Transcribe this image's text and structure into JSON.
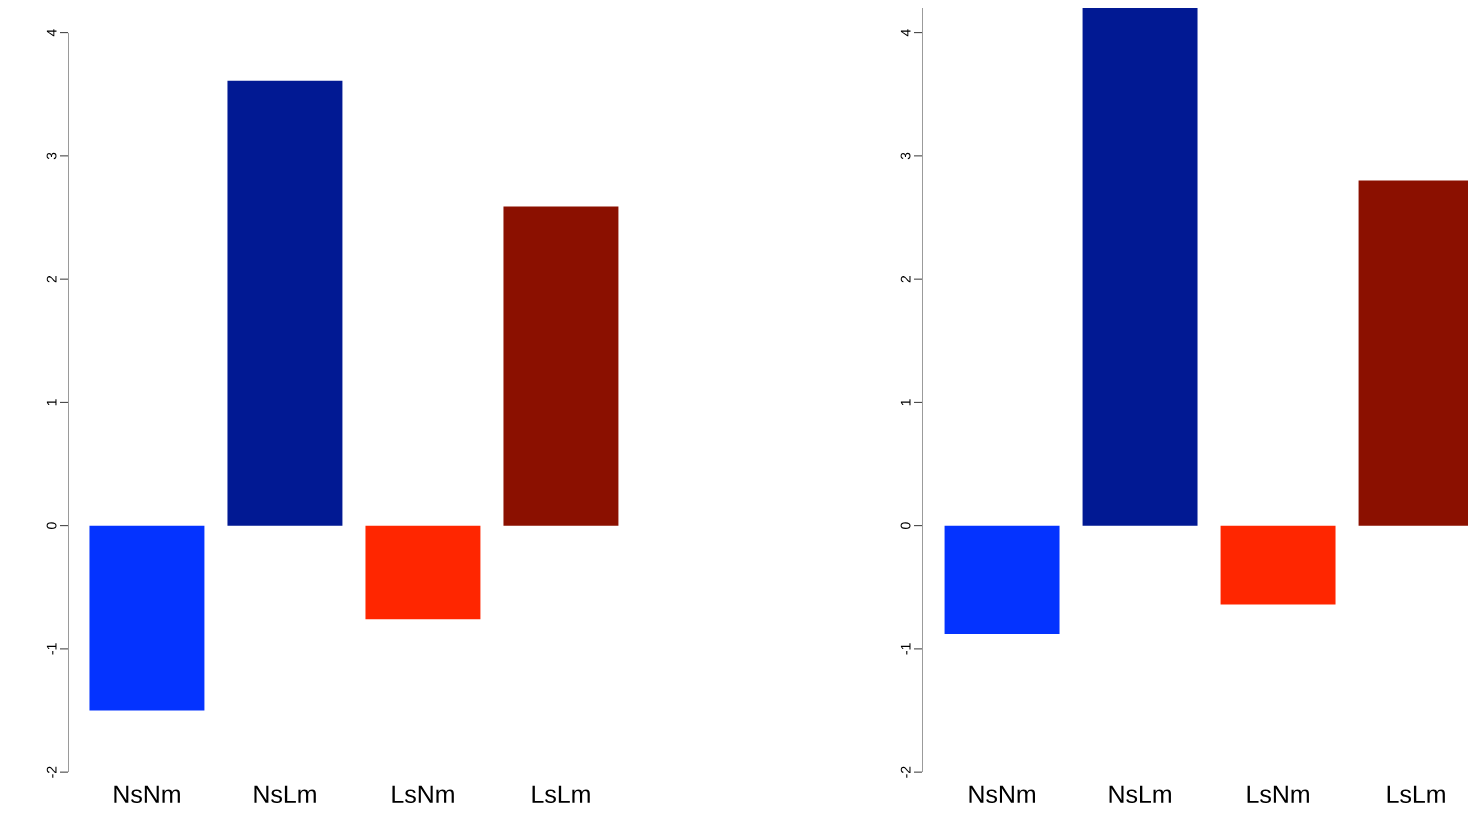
{
  "chart_data": [
    {
      "type": "bar",
      "categories": [
        "NsNm",
        "NsLm",
        "LsNm",
        "LsLm"
      ],
      "values": [
        -1.5,
        3.61,
        -0.76,
        2.59
      ],
      "colors": [
        "#0433ff",
        "#011993",
        "#ff2600",
        "#8b1000"
      ],
      "ylim": [
        -2,
        4
      ],
      "yticks": [
        -2,
        -1,
        0,
        1,
        2,
        3,
        4
      ]
    },
    {
      "type": "bar",
      "categories": [
        "NsNm",
        "NsLm",
        "LsNm",
        "LsLm"
      ],
      "values": [
        -0.88,
        4.2,
        -0.64,
        2.8
      ],
      "colors": [
        "#0433ff",
        "#011993",
        "#ff2600",
        "#8b1000"
      ],
      "ylim": [
        -2,
        4.2
      ],
      "yticks": [
        -2,
        -1,
        0,
        1,
        2,
        3,
        4
      ]
    }
  ]
}
